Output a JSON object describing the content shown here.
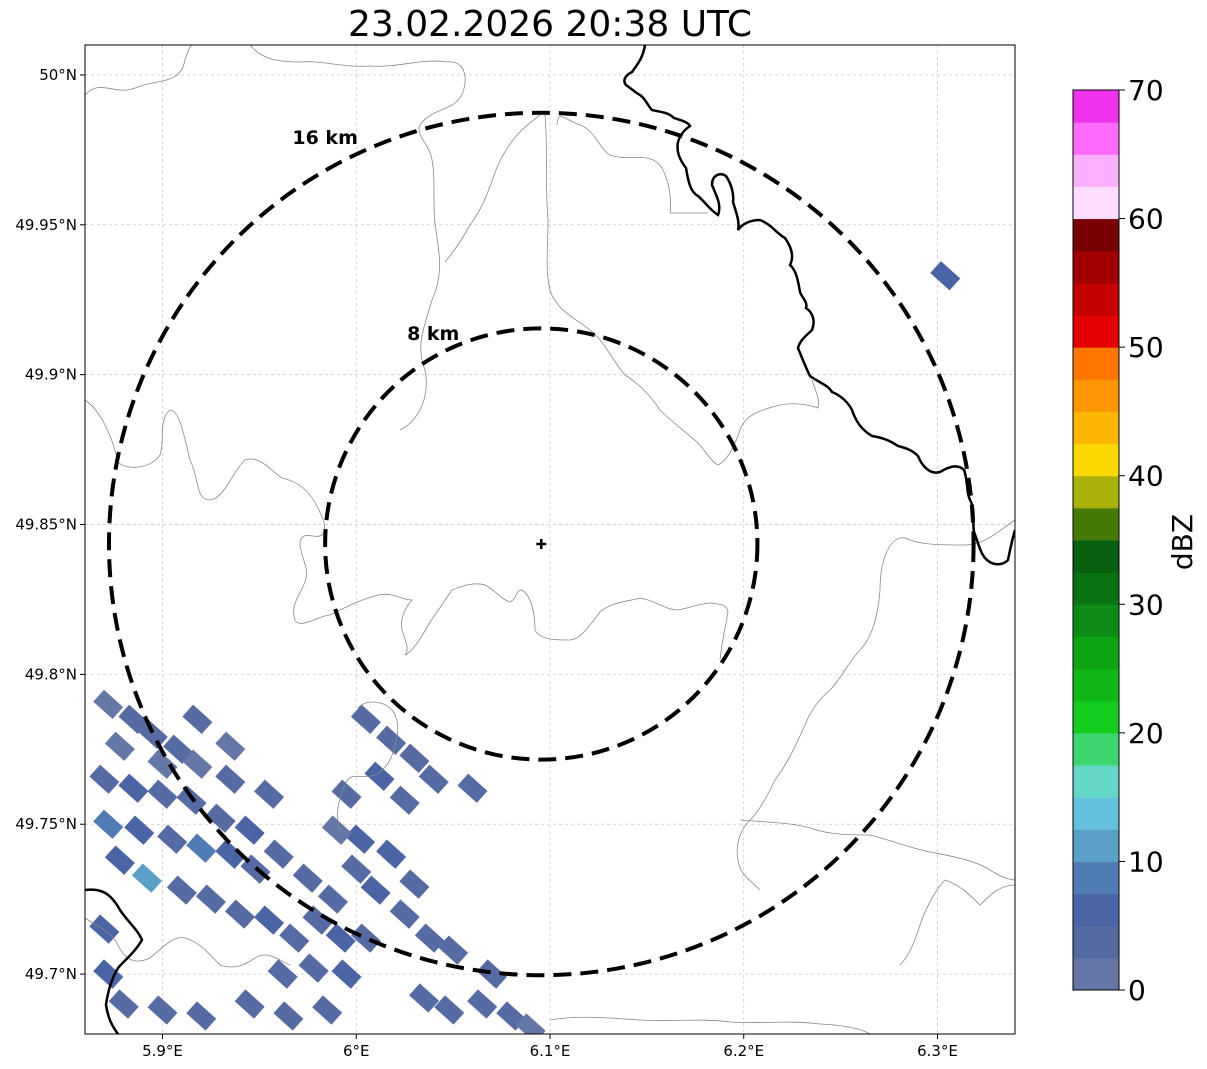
{
  "title": "23.02.2026 20:38 UTC",
  "map": {
    "lon_range": [
      5.86,
      6.34
    ],
    "lat_range": [
      49.68,
      50.01
    ],
    "lon_ticks": [
      {
        "value": 5.9,
        "label": "5.9°E"
      },
      {
        "value": 6.0,
        "label": "6°E"
      },
      {
        "value": 6.1,
        "label": "6.1°E"
      },
      {
        "value": 6.2,
        "label": "6.2°E"
      },
      {
        "value": 6.3,
        "label": "6.3°E"
      }
    ],
    "lat_ticks": [
      {
        "value": 50.0,
        "label": "50°N"
      },
      {
        "value": 49.95,
        "label": "49.95°N"
      },
      {
        "value": 49.9,
        "label": "49.9°N"
      },
      {
        "value": 49.85,
        "label": "49.85°N"
      },
      {
        "value": 49.8,
        "label": "49.8°N"
      },
      {
        "value": 49.75,
        "label": "49.75°N"
      },
      {
        "value": 49.7,
        "label": "49.7°N"
      }
    ],
    "grid": true,
    "radar_site": {
      "lon": 6.0955,
      "lat": 49.8435
    },
    "range_rings": [
      {
        "label": "8 km",
        "radius_km": 8
      },
      {
        "label": "16 km",
        "radius_km": 16
      }
    ],
    "colors": {
      "rings": "#000000",
      "border": "#000000",
      "admin_lines": "#888888",
      "grid": "#bbbbbb"
    }
  },
  "colorbar": {
    "label": "dBZ",
    "min": 0,
    "max": 70,
    "tick_labels": [
      {
        "value": 0,
        "label": "0"
      },
      {
        "value": 10,
        "label": "10"
      },
      {
        "value": 20,
        "label": "20"
      },
      {
        "value": 30,
        "label": "30"
      },
      {
        "value": 40,
        "label": "40"
      },
      {
        "value": 50,
        "label": "50"
      },
      {
        "value": 60,
        "label": "60"
      },
      {
        "value": 70,
        "label": "70"
      }
    ],
    "colors": [
      "#6477a6",
      "#566ba3",
      "#4a64a5",
      "#4f7cb5",
      "#5aa0c8",
      "#64c0dc",
      "#64d6c6",
      "#3cd670",
      "#14cc1e",
      "#10b614",
      "#0ea414",
      "#0c8c14",
      "#0a7414",
      "#066010",
      "#467a08",
      "#aab20a",
      "#fcd800",
      "#fcb600",
      "#fc9600",
      "#fc7600",
      "#e40000",
      "#c40000",
      "#a00000",
      "#780000",
      "#fddcfd",
      "#fcb0fc",
      "#fc6afc",
      "#ee32ee"
    ]
  },
  "echoes": [
    {
      "lon": 5.872,
      "lat": 49.79,
      "dbz": 2
    },
    {
      "lon": 5.885,
      "lat": 49.785,
      "dbz": 3
    },
    {
      "lon": 5.878,
      "lat": 49.776,
      "dbz": 2
    },
    {
      "lon": 5.895,
      "lat": 49.78,
      "dbz": 4
    },
    {
      "lon": 5.908,
      "lat": 49.775,
      "dbz": 3
    },
    {
      "lon": 5.918,
      "lat": 49.77,
      "dbz": 2
    },
    {
      "lon": 5.87,
      "lat": 49.765,
      "dbz": 4
    },
    {
      "lon": 5.885,
      "lat": 49.762,
      "dbz": 5
    },
    {
      "lon": 5.9,
      "lat": 49.76,
      "dbz": 3
    },
    {
      "lon": 5.915,
      "lat": 49.758,
      "dbz": 4
    },
    {
      "lon": 5.93,
      "lat": 49.752,
      "dbz": 3
    },
    {
      "lon": 5.872,
      "lat": 49.75,
      "dbz": 8
    },
    {
      "lon": 5.888,
      "lat": 49.748,
      "dbz": 6
    },
    {
      "lon": 5.905,
      "lat": 49.745,
      "dbz": 4
    },
    {
      "lon": 5.92,
      "lat": 49.742,
      "dbz": 9
    },
    {
      "lon": 5.935,
      "lat": 49.74,
      "dbz": 5
    },
    {
      "lon": 5.948,
      "lat": 49.735,
      "dbz": 4
    },
    {
      "lon": 5.878,
      "lat": 49.738,
      "dbz": 7
    },
    {
      "lon": 5.892,
      "lat": 49.732,
      "dbz": 10
    },
    {
      "lon": 5.91,
      "lat": 49.728,
      "dbz": 3
    },
    {
      "lon": 5.925,
      "lat": 49.725,
      "dbz": 4
    },
    {
      "lon": 5.94,
      "lat": 49.72,
      "dbz": 3
    },
    {
      "lon": 5.955,
      "lat": 49.718,
      "dbz": 5
    },
    {
      "lon": 5.968,
      "lat": 49.712,
      "dbz": 4
    },
    {
      "lon": 5.98,
      "lat": 49.718,
      "dbz": 3
    },
    {
      "lon": 5.992,
      "lat": 49.712,
      "dbz": 6
    },
    {
      "lon": 5.978,
      "lat": 49.702,
      "dbz": 4
    },
    {
      "lon": 5.962,
      "lat": 49.7,
      "dbz": 3
    },
    {
      "lon": 5.995,
      "lat": 49.7,
      "dbz": 5
    },
    {
      "lon": 6.005,
      "lat": 49.712,
      "dbz": 4
    },
    {
      "lon": 5.87,
      "lat": 49.715,
      "dbz": 6
    },
    {
      "lon": 5.872,
      "lat": 49.7,
      "dbz": 5
    },
    {
      "lon": 5.88,
      "lat": 49.69,
      "dbz": 4
    },
    {
      "lon": 5.9,
      "lat": 49.688,
      "dbz": 3
    },
    {
      "lon": 5.92,
      "lat": 49.686,
      "dbz": 4
    },
    {
      "lon": 5.945,
      "lat": 49.69,
      "dbz": 3
    },
    {
      "lon": 5.965,
      "lat": 49.686,
      "dbz": 4
    },
    {
      "lon": 5.985,
      "lat": 49.688,
      "dbz": 3
    },
    {
      "lon": 5.955,
      "lat": 49.76,
      "dbz": 3
    },
    {
      "lon": 5.935,
      "lat": 49.765,
      "dbz": 4
    },
    {
      "lon": 5.945,
      "lat": 49.748,
      "dbz": 5
    },
    {
      "lon": 5.96,
      "lat": 49.74,
      "dbz": 3
    },
    {
      "lon": 5.975,
      "lat": 49.732,
      "dbz": 4
    },
    {
      "lon": 5.988,
      "lat": 49.725,
      "dbz": 3
    },
    {
      "lon": 5.9,
      "lat": 49.77,
      "dbz": 2
    },
    {
      "lon": 5.918,
      "lat": 49.785,
      "dbz": 3
    },
    {
      "lon": 5.935,
      "lat": 49.776,
      "dbz": 2
    },
    {
      "lon": 6.005,
      "lat": 49.785,
      "dbz": 3
    },
    {
      "lon": 6.018,
      "lat": 49.778,
      "dbz": 4
    },
    {
      "lon": 6.03,
      "lat": 49.772,
      "dbz": 3
    },
    {
      "lon": 6.012,
      "lat": 49.766,
      "dbz": 5
    },
    {
      "lon": 6.025,
      "lat": 49.758,
      "dbz": 4
    },
    {
      "lon": 5.995,
      "lat": 49.76,
      "dbz": 3
    },
    {
      "lon": 6.002,
      "lat": 49.745,
      "dbz": 5
    },
    {
      "lon": 6.018,
      "lat": 49.74,
      "dbz": 6
    },
    {
      "lon": 6.03,
      "lat": 49.73,
      "dbz": 4
    },
    {
      "lon": 6.01,
      "lat": 49.728,
      "dbz": 5
    },
    {
      "lon": 6.025,
      "lat": 49.72,
      "dbz": 3
    },
    {
      "lon": 6.038,
      "lat": 49.712,
      "dbz": 4
    },
    {
      "lon": 6.0,
      "lat": 49.735,
      "dbz": 3
    },
    {
      "lon": 5.99,
      "lat": 49.748,
      "dbz": 2
    },
    {
      "lon": 6.04,
      "lat": 49.765,
      "dbz": 3
    },
    {
      "lon": 6.06,
      "lat": 49.762,
      "dbz": 4
    },
    {
      "lon": 6.05,
      "lat": 49.708,
      "dbz": 3
    },
    {
      "lon": 6.048,
      "lat": 49.688,
      "dbz": 4
    },
    {
      "lon": 6.065,
      "lat": 49.69,
      "dbz": 3
    },
    {
      "lon": 6.08,
      "lat": 49.686,
      "dbz": 4
    },
    {
      "lon": 6.07,
      "lat": 49.7,
      "dbz": 3
    },
    {
      "lon": 6.035,
      "lat": 49.692,
      "dbz": 3
    },
    {
      "lon": 6.09,
      "lat": 49.682,
      "dbz": 2
    },
    {
      "lon": 6.304,
      "lat": 49.933,
      "dbz": 5
    }
  ]
}
